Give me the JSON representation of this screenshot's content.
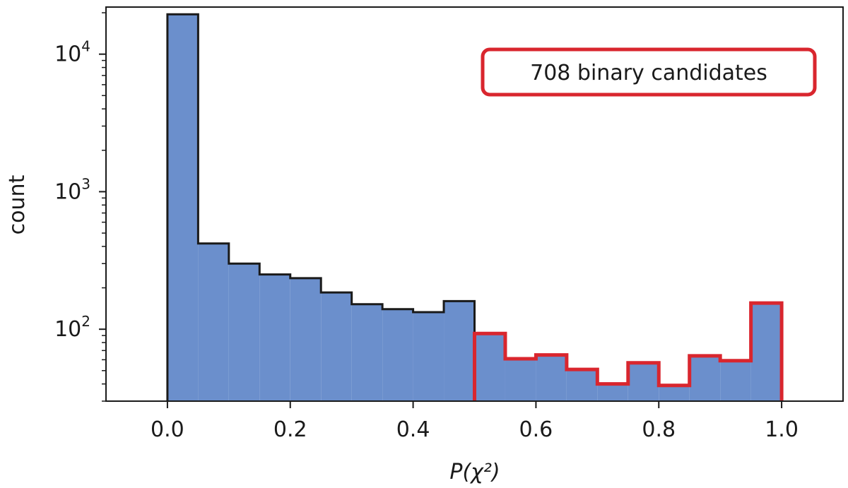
{
  "chart_data": {
    "type": "histogram",
    "y_scale": "log",
    "xlabel": "P(χ²)",
    "ylabel": "count",
    "xlim": [
      -0.1,
      1.1
    ],
    "ylim": [
      30,
      22000
    ],
    "x_ticks": [
      0.0,
      0.2,
      0.4,
      0.6,
      0.8,
      1.0
    ],
    "x_tick_labels": [
      "0.0",
      "0.2",
      "0.4",
      "0.6",
      "0.8",
      "1.0"
    ],
    "y_ticks": [
      {
        "value": 100,
        "base": "10",
        "exp": "2"
      },
      {
        "value": 1000,
        "base": "10",
        "exp": "3"
      },
      {
        "value": 10000,
        "base": "10",
        "exp": "4"
      }
    ],
    "bin_edges": [
      0.0,
      0.05,
      0.1,
      0.15,
      0.2,
      0.25,
      0.3,
      0.35,
      0.4,
      0.45,
      0.5,
      0.55,
      0.6,
      0.65,
      0.7,
      0.75,
      0.8,
      0.85,
      0.9,
      0.95,
      1.0
    ],
    "counts": [
      19500,
      420,
      300,
      250,
      235,
      185,
      152,
      140,
      133,
      160,
      93,
      61,
      65,
      51,
      40,
      57,
      39,
      64,
      59,
      155
    ],
    "highlight_range": [
      0.5,
      1.0
    ],
    "colors": {
      "fill": "#6b8fcc",
      "edge": "#1a1a1a",
      "highlight": "#d9262e"
    },
    "grid": false,
    "annotation": {
      "text": "708 binary candidates",
      "placement": "top-right"
    }
  }
}
